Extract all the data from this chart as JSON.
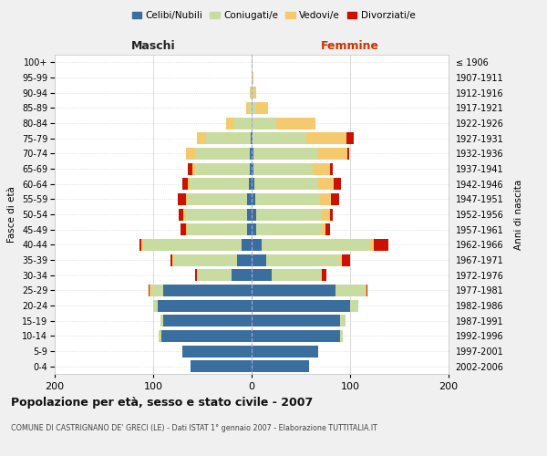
{
  "age_groups": [
    "0-4",
    "5-9",
    "10-14",
    "15-19",
    "20-24",
    "25-29",
    "30-34",
    "35-39",
    "40-44",
    "45-49",
    "50-54",
    "55-59",
    "60-64",
    "65-69",
    "70-74",
    "75-79",
    "80-84",
    "85-89",
    "90-94",
    "95-99",
    "100+"
  ],
  "birth_years": [
    "2002-2006",
    "1997-2001",
    "1992-1996",
    "1987-1991",
    "1982-1986",
    "1977-1981",
    "1972-1976",
    "1967-1971",
    "1962-1966",
    "1957-1961",
    "1952-1956",
    "1947-1951",
    "1942-1946",
    "1937-1941",
    "1932-1936",
    "1927-1931",
    "1922-1926",
    "1917-1921",
    "1912-1916",
    "1907-1911",
    "≤ 1906"
  ],
  "colors": {
    "celibi": "#3a6e9e",
    "coniugati": "#c8dba0",
    "vedovi": "#f5ca6e",
    "divorziati": "#cc1100"
  },
  "male": {
    "celibi": [
      62,
      70,
      92,
      90,
      95,
      90,
      20,
      15,
      10,
      5,
      5,
      5,
      3,
      2,
      2,
      1,
      0,
      0,
      0,
      0,
      0
    ],
    "coniugati": [
      0,
      0,
      2,
      3,
      5,
      12,
      35,
      65,
      100,
      60,
      62,
      60,
      60,
      55,
      55,
      45,
      18,
      3,
      1,
      0,
      0
    ],
    "vedovi": [
      0,
      0,
      0,
      0,
      0,
      2,
      1,
      1,
      2,
      2,
      2,
      2,
      2,
      3,
      10,
      10,
      8,
      3,
      1,
      0,
      0
    ],
    "divorziati": [
      0,
      0,
      0,
      0,
      0,
      1,
      1,
      1,
      2,
      5,
      5,
      8,
      5,
      5,
      0,
      0,
      0,
      0,
      0,
      0,
      0
    ]
  },
  "female": {
    "celibi": [
      58,
      68,
      90,
      90,
      100,
      85,
      20,
      15,
      10,
      5,
      5,
      4,
      3,
      2,
      2,
      1,
      0,
      0,
      0,
      0,
      0
    ],
    "coniugati": [
      0,
      0,
      3,
      5,
      8,
      30,
      50,
      75,
      110,
      65,
      65,
      65,
      65,
      60,
      65,
      55,
      25,
      5,
      2,
      1,
      0
    ],
    "vedovi": [
      0,
      0,
      0,
      0,
      0,
      2,
      1,
      2,
      4,
      5,
      10,
      12,
      15,
      18,
      30,
      40,
      40,
      12,
      3,
      1,
      1
    ],
    "divorziati": [
      0,
      0,
      0,
      0,
      0,
      1,
      5,
      8,
      15,
      5,
      2,
      8,
      8,
      2,
      2,
      8,
      0,
      0,
      0,
      0,
      0
    ]
  },
  "xlim": 200,
  "title": "Popolazione per età, sesso e stato civile - 2007",
  "subtitle": "COMUNE DI CASTRIGNANO DE' GRECI (LE) - Dati ISTAT 1° gennaio 2007 - Elaborazione TUTTITALIA.IT",
  "ylabel_left": "Fasce di età",
  "ylabel_right": "Anni di nascita",
  "xlabel_left": "Maschi",
  "xlabel_right": "Femmine",
  "bg_color": "#f0f0f0",
  "plot_bg": "#ffffff"
}
